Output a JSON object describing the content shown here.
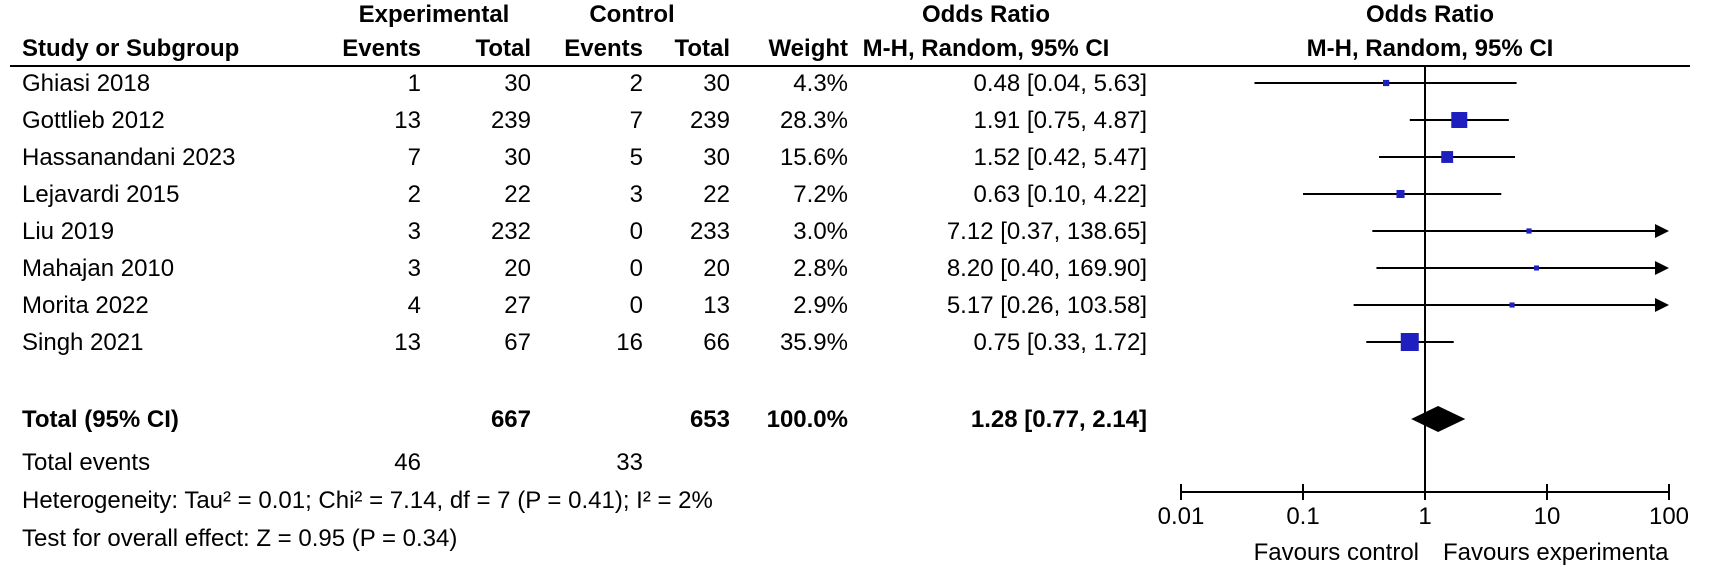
{
  "headers": {
    "experimental": "Experimental",
    "control": "Control",
    "odds_ratio": "Odds Ratio",
    "odds_ratio_plot": "Odds Ratio",
    "study": "Study or Subgroup",
    "exp_events": "Events",
    "exp_total": "Total",
    "ctl_events": "Events",
    "ctl_total": "Total",
    "weight": "Weight",
    "method": "M-H, Random, 95% CI",
    "method_plot": "M-H, Random, 95% CI"
  },
  "total_row": {
    "label": "Total (95% CI)",
    "exp_total": "667",
    "ctl_total": "653",
    "weight": "100.0%",
    "ci_text": "1.28 [0.77, 2.14]"
  },
  "events_row": {
    "label": "Total events",
    "exp_events": "46",
    "ctl_events": "33"
  },
  "heterogeneity": "Heterogeneity: Tau² = 0.01; Chi² = 7.14, df = 7 (P = 0.41); I² = 2%",
  "overall_effect": "Test for overall effect: Z = 0.95 (P = 0.34)",
  "favours_left": "Favours control",
  "favours_right": "Favours experimenta",
  "colors": {
    "marker": "#1f1fbf",
    "line": "#000000",
    "diamond": "#000000"
  },
  "chart_data": {
    "type": "forest",
    "x_scale": "log",
    "xlim": [
      0.01,
      100
    ],
    "x_ticks": [
      0.01,
      0.1,
      1,
      10,
      100
    ],
    "x_tick_labels": [
      "0.01",
      "0.1",
      "1",
      "10",
      "100"
    ],
    "reference_line": 1,
    "studies": [
      {
        "name": "Ghiasi 2018",
        "exp_events": 1,
        "exp_total": 30,
        "ctl_events": 2,
        "ctl_total": 30,
        "weight": 4.3,
        "weight_text": "4.3%",
        "or": 0.48,
        "lo": 0.04,
        "hi": 5.63,
        "ci_text": "0.48 [0.04, 5.63]"
      },
      {
        "name": "Gottlieb 2012",
        "exp_events": 13,
        "exp_total": 239,
        "ctl_events": 7,
        "ctl_total": 239,
        "weight": 28.3,
        "weight_text": "28.3%",
        "or": 1.91,
        "lo": 0.75,
        "hi": 4.87,
        "ci_text": "1.91 [0.75, 4.87]"
      },
      {
        "name": "Hassanandani 2023",
        "exp_events": 7,
        "exp_total": 30,
        "ctl_events": 5,
        "ctl_total": 30,
        "weight": 15.6,
        "weight_text": "15.6%",
        "or": 1.52,
        "lo": 0.42,
        "hi": 5.47,
        "ci_text": "1.52 [0.42, 5.47]"
      },
      {
        "name": "Lejavardi 2015",
        "exp_events": 2,
        "exp_total": 22,
        "ctl_events": 3,
        "ctl_total": 22,
        "weight": 7.2,
        "weight_text": "7.2%",
        "or": 0.63,
        "lo": 0.1,
        "hi": 4.22,
        "ci_text": "0.63 [0.10, 4.22]"
      },
      {
        "name": "Liu 2019",
        "exp_events": 3,
        "exp_total": 232,
        "ctl_events": 0,
        "ctl_total": 233,
        "weight": 3.0,
        "weight_text": "3.0%",
        "or": 7.12,
        "lo": 0.37,
        "hi": 138.65,
        "ci_text": "7.12 [0.37, 138.65]"
      },
      {
        "name": "Mahajan 2010",
        "exp_events": 3,
        "exp_total": 20,
        "ctl_events": 0,
        "ctl_total": 20,
        "weight": 2.8,
        "weight_text": "2.8%",
        "or": 8.2,
        "lo": 0.4,
        "hi": 169.9,
        "ci_text": "8.20 [0.40, 169.90]"
      },
      {
        "name": "Morita 2022",
        "exp_events": 4,
        "exp_total": 27,
        "ctl_events": 0,
        "ctl_total": 13,
        "weight": 2.9,
        "weight_text": "2.9%",
        "or": 5.17,
        "lo": 0.26,
        "hi": 103.58,
        "ci_text": "5.17 [0.26, 103.58]"
      },
      {
        "name": "Singh 2021",
        "exp_events": 13,
        "exp_total": 67,
        "ctl_events": 16,
        "ctl_total": 66,
        "weight": 35.9,
        "weight_text": "35.9%",
        "or": 0.75,
        "lo": 0.33,
        "hi": 1.72,
        "ci_text": "0.75 [0.33, 1.72]"
      }
    ],
    "pooled": {
      "or": 1.28,
      "lo": 0.77,
      "hi": 2.14
    }
  }
}
